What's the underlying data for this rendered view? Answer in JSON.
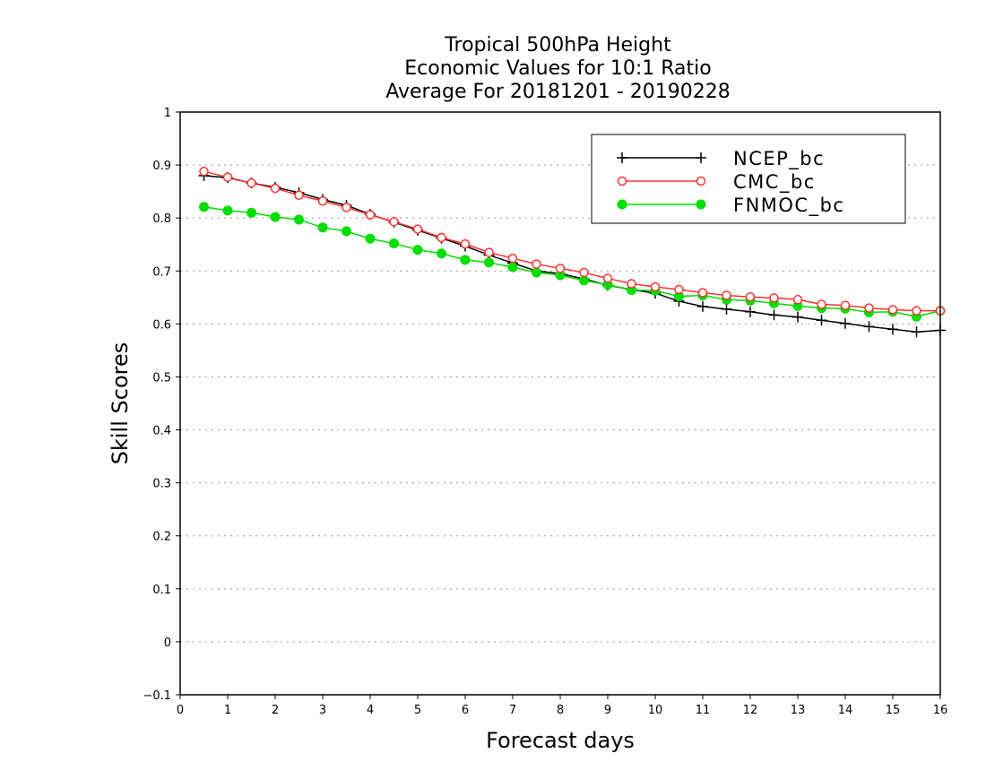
{
  "chart_data": {
    "type": "line",
    "title": [
      "Tropical 500hPa Height",
      "Economic Values for 10:1 Ratio",
      "Average For 20181201 - 20190228"
    ],
    "xlabel": "Forecast days",
    "ylabel": "Skill Scores",
    "xlim": [
      0,
      16
    ],
    "ylim": [
      -0.1,
      1
    ],
    "xticks": [
      "0",
      "1",
      "2",
      "3",
      "4",
      "5",
      "6",
      "7",
      "8",
      "9",
      "10",
      "11",
      "12",
      "13",
      "14",
      "15",
      "16"
    ],
    "yticks": [
      "−0.1",
      "0",
      "0.1",
      "0.2",
      "0.3",
      "0.4",
      "0.5",
      "0.6",
      "0.7",
      "0.8",
      "0.9",
      "1"
    ],
    "grid": true,
    "legend_position": "top-right",
    "x": [
      0.5,
      1,
      1.5,
      2,
      2.5,
      3,
      3.5,
      4,
      4.5,
      5,
      5.5,
      6,
      6.5,
      7,
      7.5,
      8,
      8.5,
      9,
      9.5,
      10,
      10.5,
      11,
      11.5,
      12,
      12.5,
      13,
      13.5,
      14,
      14.5,
      15,
      15.5,
      16
    ],
    "series": [
      {
        "name": "NCEP_bc",
        "color": "#000000",
        "marker": "plus",
        "values": [
          0.88,
          0.876,
          0.866,
          0.858,
          0.848,
          0.835,
          0.824,
          0.807,
          0.792,
          0.777,
          0.762,
          0.747,
          0.73,
          0.715,
          0.7,
          0.695,
          0.685,
          0.673,
          0.665,
          0.658,
          0.643,
          0.633,
          0.628,
          0.623,
          0.617,
          0.613,
          0.607,
          0.601,
          0.595,
          0.59,
          0.585,
          0.588
        ]
      },
      {
        "name": "CMC_bc",
        "color": "#ff3333",
        "marker": "open-circle",
        "values": [
          0.888,
          0.877,
          0.866,
          0.856,
          0.843,
          0.832,
          0.82,
          0.806,
          0.793,
          0.779,
          0.763,
          0.751,
          0.735,
          0.724,
          0.713,
          0.705,
          0.697,
          0.686,
          0.676,
          0.67,
          0.665,
          0.659,
          0.654,
          0.651,
          0.649,
          0.646,
          0.637,
          0.635,
          0.63,
          0.627,
          0.625,
          0.625
        ]
      },
      {
        "name": "FNMOC_bc",
        "color": "#00dd00",
        "marker": "filled-circle",
        "values": [
          0.821,
          0.814,
          0.81,
          0.802,
          0.797,
          0.782,
          0.775,
          0.761,
          0.752,
          0.74,
          0.733,
          0.721,
          0.716,
          0.707,
          0.697,
          0.692,
          0.682,
          0.674,
          0.664,
          0.663,
          0.652,
          0.654,
          0.646,
          0.644,
          0.639,
          0.634,
          0.63,
          0.629,
          0.622,
          0.623,
          0.614,
          0.625
        ]
      }
    ]
  }
}
